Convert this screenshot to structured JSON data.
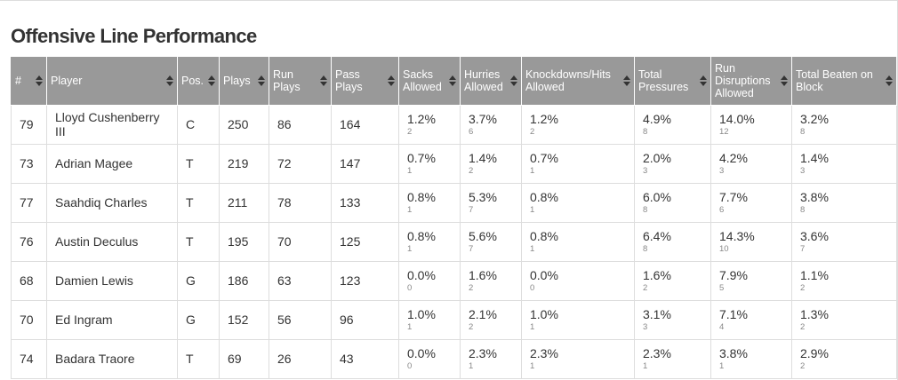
{
  "title": "Offensive Line Performance",
  "colors": {
    "header_bg": "#999999",
    "border": "#dddddd",
    "subtext": "#888888"
  },
  "columns": [
    {
      "label": "#",
      "icon": "sort-icon"
    },
    {
      "label": "Player",
      "icon": "sort-icon"
    },
    {
      "label": "Pos.",
      "icon": "sort-icon"
    },
    {
      "label": "Plays",
      "icon": "sort-icon"
    },
    {
      "label": "Run Plays",
      "icon": "sort-icon"
    },
    {
      "label": "Pass Plays",
      "icon": "sort-icon"
    },
    {
      "label": "Sacks Allowed",
      "icon": "sort-icon"
    },
    {
      "label": "Hurries Allowed",
      "icon": "sort-icon"
    },
    {
      "label": "Knockdowns/Hits Allowed",
      "icon": "sort-icon"
    },
    {
      "label": "Total Pressures",
      "icon": "sort-icon"
    },
    {
      "label": "Run Disruptions Allowed",
      "icon": "sort-icon"
    },
    {
      "label": "Total Beaten on Block",
      "icon": "sort-icon"
    }
  ],
  "rows": [
    {
      "num": "79",
      "player": "Lloyd Cushenberry III",
      "pos": "C",
      "plays": "250",
      "run": "86",
      "pass": "164",
      "sacks": [
        "1.2%",
        "2"
      ],
      "hurries": [
        "3.7%",
        "6"
      ],
      "knock": [
        "1.2%",
        "2"
      ],
      "press": [
        "4.9%",
        "8"
      ],
      "rundis": [
        "14.0%",
        "12"
      ],
      "beaten": [
        "3.2%",
        "8"
      ]
    },
    {
      "num": "73",
      "player": "Adrian Magee",
      "pos": "T",
      "plays": "219",
      "run": "72",
      "pass": "147",
      "sacks": [
        "0.7%",
        "1"
      ],
      "hurries": [
        "1.4%",
        "2"
      ],
      "knock": [
        "0.7%",
        "1"
      ],
      "press": [
        "2.0%",
        "3"
      ],
      "rundis": [
        "4.2%",
        "3"
      ],
      "beaten": [
        "1.4%",
        "3"
      ]
    },
    {
      "num": "77",
      "player": "Saahdiq Charles",
      "pos": "T",
      "plays": "211",
      "run": "78",
      "pass": "133",
      "sacks": [
        "0.8%",
        "1"
      ],
      "hurries": [
        "5.3%",
        "7"
      ],
      "knock": [
        "0.8%",
        "1"
      ],
      "press": [
        "6.0%",
        "8"
      ],
      "rundis": [
        "7.7%",
        "6"
      ],
      "beaten": [
        "3.8%",
        "8"
      ]
    },
    {
      "num": "76",
      "player": "Austin Deculus",
      "pos": "T",
      "plays": "195",
      "run": "70",
      "pass": "125",
      "sacks": [
        "0.8%",
        "1"
      ],
      "hurries": [
        "5.6%",
        "7"
      ],
      "knock": [
        "0.8%",
        "1"
      ],
      "press": [
        "6.4%",
        "8"
      ],
      "rundis": [
        "14.3%",
        "10"
      ],
      "beaten": [
        "3.6%",
        "7"
      ]
    },
    {
      "num": "68",
      "player": "Damien Lewis",
      "pos": "G",
      "plays": "186",
      "run": "63",
      "pass": "123",
      "sacks": [
        "0.0%",
        "0"
      ],
      "hurries": [
        "1.6%",
        "2"
      ],
      "knock": [
        "0.0%",
        "0"
      ],
      "press": [
        "1.6%",
        "2"
      ],
      "rundis": [
        "7.9%",
        "5"
      ],
      "beaten": [
        "1.1%",
        "2"
      ]
    },
    {
      "num": "70",
      "player": "Ed Ingram",
      "pos": "G",
      "plays": "152",
      "run": "56",
      "pass": "96",
      "sacks": [
        "1.0%",
        "1"
      ],
      "hurries": [
        "2.1%",
        "2"
      ],
      "knock": [
        "1.0%",
        "1"
      ],
      "press": [
        "3.1%",
        "3"
      ],
      "rundis": [
        "7.1%",
        "4"
      ],
      "beaten": [
        "1.3%",
        "2"
      ]
    },
    {
      "num": "74",
      "player": "Badara Traore",
      "pos": "T",
      "plays": "69",
      "run": "26",
      "pass": "43",
      "sacks": [
        "0.0%",
        "0"
      ],
      "hurries": [
        "2.3%",
        "1"
      ],
      "knock": [
        "2.3%",
        "1"
      ],
      "press": [
        "2.3%",
        "1"
      ],
      "rundis": [
        "3.8%",
        "1"
      ],
      "beaten": [
        "2.9%",
        "2"
      ]
    }
  ]
}
